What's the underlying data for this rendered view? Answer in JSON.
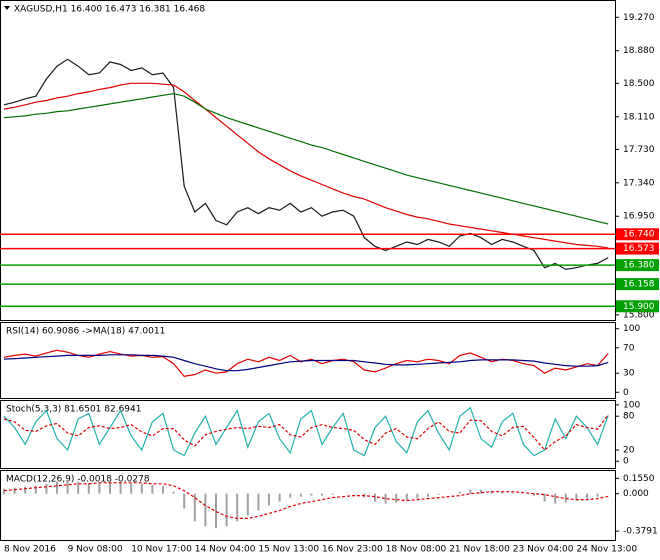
{
  "chart_data": [
    {
      "type": "line",
      "title": "XAGUSD,H1  16.400 16.473 16.381 16.468",
      "ylim": [
        15.74,
        19.46
      ],
      "yticks": [
        {
          "value": 19.27,
          "label": "19.270"
        },
        {
          "value": 18.88,
          "label": "18.880"
        },
        {
          "value": 18.5,
          "label": "18.500"
        },
        {
          "value": 18.11,
          "label": "18.110"
        },
        {
          "value": 17.73,
          "label": "17.730"
        },
        {
          "value": 17.34,
          "label": "17.340"
        },
        {
          "value": 16.95,
          "label": "16.950"
        },
        {
          "value": 15.8,
          "label": "15.800"
        }
      ],
      "series": [
        {
          "color": "#1a1a1a",
          "values": [
            18.25,
            18.28,
            18.32,
            18.35,
            18.55,
            18.7,
            18.78,
            18.7,
            18.6,
            18.62,
            18.75,
            18.72,
            18.65,
            18.68,
            18.6,
            18.62,
            18.45,
            17.3,
            17.0,
            17.1,
            16.9,
            16.85,
            17.0,
            17.05,
            16.98,
            17.05,
            17.02,
            17.1,
            17.0,
            17.05,
            16.95,
            17.0,
            17.02,
            16.95,
            16.7,
            16.6,
            16.55,
            16.6,
            16.65,
            16.62,
            16.68,
            16.65,
            16.6,
            16.72,
            16.75,
            16.7,
            16.62,
            16.68,
            16.65,
            16.6,
            16.55,
            16.35,
            16.4,
            16.33,
            16.35,
            16.38,
            16.4,
            16.468
          ]
        },
        {
          "color": "#e00000",
          "values": [
            18.2,
            18.22,
            18.25,
            18.28,
            18.3,
            18.33,
            18.35,
            18.38,
            18.4,
            18.43,
            18.45,
            18.48,
            18.5,
            18.5,
            18.5,
            18.49,
            18.48,
            18.4,
            18.3,
            18.2,
            18.1,
            18.0,
            17.9,
            17.8,
            17.7,
            17.62,
            17.55,
            17.48,
            17.42,
            17.37,
            17.32,
            17.27,
            17.22,
            17.18,
            17.15,
            17.1,
            17.05,
            17.01,
            16.97,
            16.94,
            16.92,
            16.89,
            16.86,
            16.84,
            16.82,
            16.8,
            16.78,
            16.76,
            16.74,
            16.72,
            16.7,
            16.68,
            16.66,
            16.64,
            16.62,
            16.61,
            16.6,
            16.58
          ]
        },
        {
          "color": "#007000",
          "values": [
            18.1,
            18.11,
            18.12,
            18.14,
            18.15,
            18.17,
            18.18,
            18.2,
            18.22,
            18.24,
            18.26,
            18.28,
            18.3,
            18.32,
            18.34,
            18.36,
            18.38,
            18.35,
            18.28,
            18.2,
            18.15,
            18.1,
            18.06,
            18.02,
            17.98,
            17.94,
            17.9,
            17.86,
            17.82,
            17.78,
            17.75,
            17.71,
            17.67,
            17.63,
            17.59,
            17.55,
            17.51,
            17.47,
            17.43,
            17.4,
            17.37,
            17.34,
            17.31,
            17.28,
            17.25,
            17.22,
            17.19,
            17.16,
            17.13,
            17.1,
            17.07,
            17.04,
            17.01,
            16.98,
            16.95,
            16.92,
            16.89,
            16.86
          ]
        }
      ],
      "levels": [
        {
          "value": 16.74,
          "label": "16.740",
          "color": "#ff0000"
        },
        {
          "value": 16.573,
          "label": "16.573",
          "color": "#ff0000"
        },
        {
          "value": 16.38,
          "label": "16.380",
          "color": "#00a000"
        },
        {
          "value": 16.158,
          "label": "16.158",
          "color": "#00a000"
        },
        {
          "value": 15.9,
          "label": "15.900",
          "color": "#00a000"
        }
      ]
    },
    {
      "type": "line",
      "title": "RSI(14) 60.9086  ->MA(18) 47.0011",
      "ylim": [
        -9,
        109
      ],
      "yticks": [
        100,
        70,
        30,
        0
      ],
      "series": [
        {
          "color": "#e00000",
          "values": [
            55,
            58,
            60,
            57,
            62,
            66,
            63,
            58,
            55,
            60,
            64,
            60,
            57,
            58,
            55,
            56,
            45,
            25,
            28,
            35,
            30,
            32,
            45,
            52,
            48,
            55,
            50,
            58,
            48,
            52,
            45,
            50,
            52,
            48,
            35,
            32,
            38,
            45,
            50,
            48,
            52,
            50,
            45,
            58,
            62,
            55,
            48,
            52,
            50,
            45,
            42,
            30,
            38,
            35,
            40,
            45,
            42,
            61
          ]
        },
        {
          "color": "#000080",
          "values": [
            52,
            53,
            54,
            55,
            56,
            57,
            58,
            58,
            58,
            58,
            59,
            59,
            59,
            58,
            58,
            57,
            55,
            50,
            45,
            41,
            37,
            34,
            34,
            36,
            39,
            42,
            45,
            48,
            49,
            50,
            50,
            50,
            50,
            50,
            48,
            46,
            44,
            43,
            43,
            44,
            45,
            46,
            47,
            48,
            50,
            51,
            51,
            51,
            51,
            50,
            49,
            46,
            44,
            42,
            41,
            41,
            42,
            47
          ]
        }
      ]
    },
    {
      "type": "line",
      "title": "Stoch(5,3,3) 81.6501 82.6941",
      "ylim": [
        -12,
        107
      ],
      "yticks": [
        100,
        80,
        20,
        0
      ],
      "series": [
        {
          "color": "#20b2aa",
          "values": [
            80,
            60,
            30,
            70,
            90,
            40,
            20,
            75,
            85,
            30,
            60,
            90,
            45,
            20,
            70,
            85,
            20,
            10,
            50,
            80,
            30,
            60,
            90,
            25,
            70,
            85,
            40,
            15,
            75,
            90,
            30,
            60,
            85,
            20,
            10,
            60,
            80,
            35,
            15,
            70,
            90,
            50,
            20,
            80,
            95,
            40,
            25,
            70,
            85,
            30,
            10,
            20,
            75,
            40,
            80,
            60,
            30,
            81.6501
          ]
        },
        {
          "color": "#e00000",
          "dashed": true,
          "values": [
            75,
            70,
            55,
            53,
            63,
            67,
            50,
            45,
            60,
            63,
            58,
            60,
            65,
            52,
            45,
            58,
            58,
            38,
            27,
            47,
            53,
            57,
            60,
            58,
            62,
            60,
            65,
            47,
            43,
            60,
            65,
            60,
            58,
            55,
            38,
            30,
            50,
            58,
            43,
            40,
            58,
            70,
            53,
            50,
            73,
            72,
            53,
            45,
            60,
            62,
            42,
            20,
            35,
            45,
            65,
            60,
            57,
            82.6941
          ]
        }
      ]
    },
    {
      "type": "macd",
      "title": "MACD(12,26,9) -0.0018 -0.0278",
      "ylim": [
        -0.469,
        0.2295
      ],
      "yticks": [
        {
          "value": 0.155,
          "label": "0.1550"
        },
        {
          "value": 0,
          "label": "0.000"
        },
        {
          "value": -0.3791,
          "label": "-0.3791"
        }
      ],
      "color": "#a0a0a0",
      "values": [
        0.05,
        0.06,
        0.07,
        0.08,
        0.1,
        0.12,
        0.13,
        0.12,
        0.11,
        0.11,
        0.12,
        0.12,
        0.1,
        0.1,
        0.09,
        0.08,
        0.02,
        -0.15,
        -0.28,
        -0.33,
        -0.35,
        -0.33,
        -0.28,
        -0.22,
        -0.17,
        -0.12,
        -0.08,
        -0.04,
        -0.03,
        -0.02,
        -0.02,
        -0.01,
        0,
        0,
        -0.04,
        -0.08,
        -0.1,
        -0.09,
        -0.07,
        -0.05,
        -0.03,
        -0.01,
        0,
        0.02,
        0.04,
        0.04,
        0.03,
        0.02,
        0.01,
        0,
        -0.02,
        -0.08,
        -0.1,
        -0.09,
        -0.07,
        -0.05,
        -0.03,
        -0.0018
      ],
      "signal": {
        "color": "#e00000",
        "dashed": true,
        "values": [
          0.03,
          0.04,
          0.05,
          0.06,
          0.07,
          0.08,
          0.09,
          0.1,
          0.1,
          0.11,
          0.11,
          0.11,
          0.11,
          0.11,
          0.1,
          0.1,
          0.08,
          0.03,
          -0.04,
          -0.12,
          -0.18,
          -0.23,
          -0.25,
          -0.25,
          -0.23,
          -0.2,
          -0.17,
          -0.13,
          -0.1,
          -0.08,
          -0.06,
          -0.04,
          -0.03,
          -0.02,
          -0.02,
          -0.03,
          -0.05,
          -0.06,
          -0.07,
          -0.06,
          -0.05,
          -0.04,
          -0.03,
          -0.02,
          0,
          0.01,
          0.02,
          0.02,
          0.02,
          0.01,
          0,
          -0.01,
          -0.03,
          -0.05,
          -0.06,
          -0.06,
          -0.05,
          -0.0278
        ]
      },
      "categories": [
        "8 Nov 2016",
        null,
        null,
        null,
        null,
        null,
        "9 Nov 08:00",
        null,
        null,
        null,
        null,
        null,
        "10 Nov 17:00",
        null,
        null,
        null,
        null,
        null,
        "14 Nov 04:00",
        null,
        null,
        null,
        null,
        null,
        "15 Nov 13:00",
        null,
        null,
        null,
        null,
        null,
        "16 Nov 23:00",
        null,
        null,
        null,
        null,
        null,
        "18 Nov 08:00",
        null,
        null,
        null,
        null,
        null,
        "21 Nov 18:00",
        null,
        null,
        null,
        null,
        null,
        "23 Nov 04:00",
        null,
        null,
        null,
        null,
        null,
        "24 Nov 13:00",
        null,
        null,
        null
      ]
    }
  ]
}
